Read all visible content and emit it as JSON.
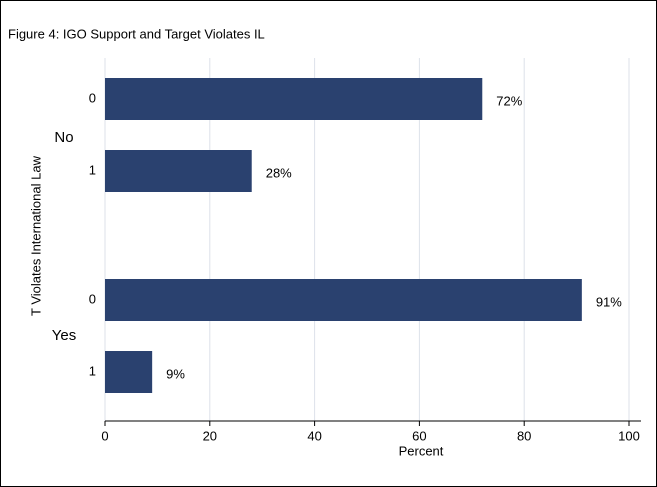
{
  "chart_data": {
    "type": "bar",
    "title": "Figure 4: IGO Support and Target Violates IL",
    "x_label": "Percent",
    "y_label": "T Violates International Law",
    "groups": [
      {
        "name": "No",
        "categories": [
          "0",
          "1"
        ],
        "values": [
          72,
          28
        ],
        "value_labels": [
          "72%",
          "28%"
        ]
      },
      {
        "name": "Yes",
        "categories": [
          "0",
          "1"
        ],
        "values": [
          91,
          9
        ],
        "value_labels": [
          "91%",
          "9%"
        ]
      }
    ],
    "color": "#2a416f",
    "xlim": [
      0,
      100
    ],
    "xticks": [
      0,
      20,
      40,
      60,
      80,
      100
    ],
    "grid": true
  }
}
